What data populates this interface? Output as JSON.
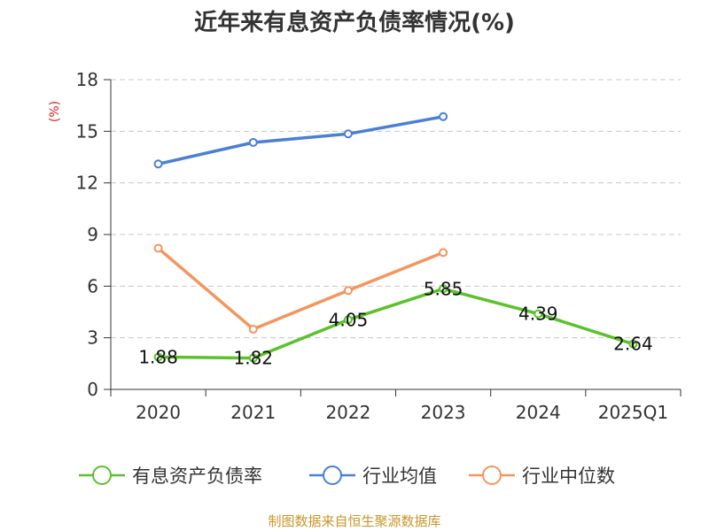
{
  "chart_data": {
    "type": "line",
    "title": "近年来有息资产负债率情况(%)",
    "ylabel": "(%)",
    "categories": [
      "2020",
      "2021",
      "2022",
      "2023",
      "2024",
      "2025Q1"
    ],
    "ylim": [
      0,
      18
    ],
    "yticks": [
      0,
      3,
      6,
      9,
      12,
      15,
      18
    ],
    "grid": true,
    "legend_position": "bottom",
    "series": [
      {
        "name": "有息资产负债率",
        "color": "#5ac22a",
        "values": [
          1.88,
          1.82,
          4.05,
          5.85,
          4.39,
          2.64
        ],
        "labels": [
          "1.88",
          "1.82",
          "4.05",
          "5.85",
          "4.39",
          "2.64"
        ]
      },
      {
        "name": "行业均值",
        "color": "#4a7fd4",
        "values": [
          13.1,
          14.35,
          14.85,
          15.85,
          null,
          null
        ]
      },
      {
        "name": "行业中位数",
        "color": "#f4955d",
        "values": [
          8.2,
          3.5,
          5.75,
          7.95,
          null,
          null
        ]
      }
    ]
  },
  "source_text": "制图数据来自恒生聚源数据库"
}
